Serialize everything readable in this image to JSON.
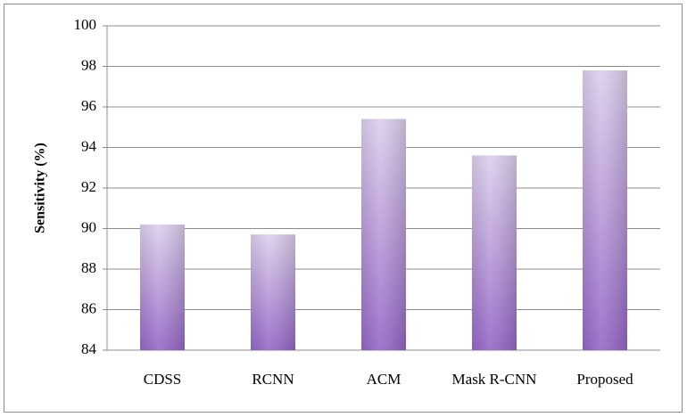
{
  "chart_data": {
    "type": "bar",
    "y_label": "Sensitivity (%)",
    "categories": [
      "CDSS",
      "RCNN",
      "ACM",
      "Mask R-CNN",
      "Proposed"
    ],
    "values": [
      90.2,
      89.7,
      95.4,
      93.6,
      97.8
    ],
    "color": "#8f5fc4",
    "ylim": [
      84,
      100
    ],
    "yticks": [
      84,
      86,
      88,
      90,
      92,
      94,
      96,
      98,
      100
    ],
    "grid": true
  }
}
